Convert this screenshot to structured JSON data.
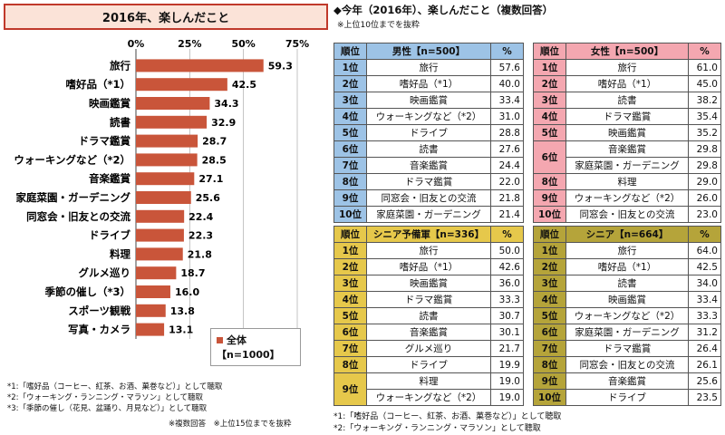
{
  "left": {
    "title": "2016年、楽しんだこと",
    "legend_label": "全体",
    "legend_n": "【n=1000】",
    "notes": [
      "*1:「嗜好品（コーヒー、紅茶、お酒、菓巻など）」として聴取",
      "*2:「ウォーキング・ランニング・マラソン」として聴取",
      "*3:「季節の催し（花見、盆踊り、月見など）」として聴取"
    ],
    "footer": "※複数回答　※上位15位までを抜粋"
  },
  "chart_data": {
    "type": "bar",
    "orientation": "horizontal",
    "categories": [
      "旅行",
      "嗜好品（*1）",
      "映画鑑賞",
      "読書",
      "ドラマ鑑賞",
      "ウォーキングなど（*2）",
      "音楽鑑賞",
      "家庭菜園・ガーデニング",
      "同窓会・旧友との交流",
      "ドライブ",
      "料理",
      "グルメ巡り",
      "季節の催し（*3）",
      "スポーツ観戦",
      "写真・カメラ"
    ],
    "series": [
      {
        "name": "全体",
        "values": [
          59.3,
          42.5,
          34.3,
          32.9,
          28.7,
          28.5,
          27.1,
          25.6,
          22.4,
          22.3,
          21.8,
          18.7,
          16.0,
          13.8,
          13.1
        ]
      }
    ],
    "value_labels": [
      "59.3",
      "42.5",
      "34.3",
      "32.9",
      "28.7",
      "28.5",
      "27.1",
      "25.6",
      "22.4",
      "22.3",
      "21.8",
      "18.7",
      "16.0",
      "13.8",
      "13.1"
    ],
    "ticks": [
      "0%",
      "25%",
      "50%",
      "75%"
    ],
    "xlim": [
      0,
      75
    ],
    "color": "#c9553a"
  },
  "right": {
    "title": "◆今年（2016年）、楽しんだこと（複数回答）",
    "subtitle": "※上位10位までを抜粋",
    "notes": [
      "*1:「嗜好品（コーヒー、紅茶、お酒、菓巻など）」として聴取",
      "*2:「ウォーキング・ランニング・マラソン」として聴取"
    ],
    "tables": [
      {
        "id": "male",
        "h_rank": "順位",
        "h_name": "男性【n=500】",
        "h_pct": "%",
        "rows": [
          {
            "rank": "1位",
            "item": "旅行",
            "pct": "57.6"
          },
          {
            "rank": "2位",
            "item": "嗜好品（*1）",
            "pct": "40.0"
          },
          {
            "rank": "3位",
            "item": "映画鑑賞",
            "pct": "33.4"
          },
          {
            "rank": "4位",
            "item": "ウォーキングなど（*2）",
            "pct": "31.0"
          },
          {
            "rank": "5位",
            "item": "ドライブ",
            "pct": "28.8"
          },
          {
            "rank": "6位",
            "item": "読書",
            "pct": "27.6"
          },
          {
            "rank": "7位",
            "item": "音楽鑑賞",
            "pct": "24.4"
          },
          {
            "rank": "8位",
            "item": "ドラマ鑑賞",
            "pct": "22.0"
          },
          {
            "rank": "9位",
            "item": "同窓会・旧友との交流",
            "pct": "21.8"
          },
          {
            "rank": "10位",
            "item": "家庭菜園・ガーデニング",
            "pct": "21.4"
          }
        ]
      },
      {
        "id": "female",
        "h_rank": "順位",
        "h_name": "女性【n=500】",
        "h_pct": "%",
        "rows": [
          {
            "rank": "1位",
            "item": "旅行",
            "pct": "61.0"
          },
          {
            "rank": "2位",
            "item": "嗜好品（*1）",
            "pct": "45.0"
          },
          {
            "rank": "3位",
            "item": "読書",
            "pct": "38.2"
          },
          {
            "rank": "4位",
            "item": "ドラマ鑑賞",
            "pct": "35.4"
          },
          {
            "rank": "5位",
            "item": "映画鑑賞",
            "pct": "35.2"
          },
          {
            "rank": "6位",
            "item": "音楽鑑賞",
            "pct": "29.8",
            "merge": 2
          },
          {
            "rank": "",
            "item": "家庭菜園・ガーデニング",
            "pct": "29.8"
          },
          {
            "rank": "8位",
            "item": "料理",
            "pct": "29.0"
          },
          {
            "rank": "9位",
            "item": "ウォーキングなど（*2）",
            "pct": "26.0"
          },
          {
            "rank": "10位",
            "item": "同窓会・旧友との交流",
            "pct": "23.0"
          }
        ]
      },
      {
        "id": "senior-reserve",
        "h_rank": "順位",
        "h_name": "シニア予備軍【n=336】",
        "h_pct": "%",
        "rows": [
          {
            "rank": "1位",
            "item": "旅行",
            "pct": "50.0"
          },
          {
            "rank": "2位",
            "item": "嗜好品（*1）",
            "pct": "42.6"
          },
          {
            "rank": "3位",
            "item": "映画鑑賞",
            "pct": "36.0"
          },
          {
            "rank": "4位",
            "item": "ドラマ鑑賞",
            "pct": "33.3"
          },
          {
            "rank": "5位",
            "item": "読書",
            "pct": "30.7"
          },
          {
            "rank": "6位",
            "item": "音楽鑑賞",
            "pct": "30.1"
          },
          {
            "rank": "7位",
            "item": "グルメ巡り",
            "pct": "21.7"
          },
          {
            "rank": "8位",
            "item": "ドライブ",
            "pct": "19.9"
          },
          {
            "rank": "9位",
            "item": "料理",
            "pct": "19.0",
            "merge": 2
          },
          {
            "rank": "",
            "item": "ウォーキングなど（*2）",
            "pct": "19.0"
          }
        ]
      },
      {
        "id": "senior",
        "h_rank": "順位",
        "h_name": "シニア【n=664】",
        "h_pct": "%",
        "rows": [
          {
            "rank": "1位",
            "item": "旅行",
            "pct": "64.0"
          },
          {
            "rank": "2位",
            "item": "嗜好品（*1）",
            "pct": "42.5"
          },
          {
            "rank": "3位",
            "item": "読書",
            "pct": "34.0"
          },
          {
            "rank": "4位",
            "item": "映画鑑賞",
            "pct": "33.4"
          },
          {
            "rank": "5位",
            "item": "ウォーキングなど（*2）",
            "pct": "33.3"
          },
          {
            "rank": "6位",
            "item": "家庭菜園・ガーデニング",
            "pct": "31.2"
          },
          {
            "rank": "7位",
            "item": "ドラマ鑑賞",
            "pct": "26.4"
          },
          {
            "rank": "8位",
            "item": "同窓会・旧友との交流",
            "pct": "26.1"
          },
          {
            "rank": "9位",
            "item": "音楽鑑賞",
            "pct": "25.6"
          },
          {
            "rank": "10位",
            "item": "ドライブ",
            "pct": "23.5"
          }
        ]
      }
    ]
  }
}
